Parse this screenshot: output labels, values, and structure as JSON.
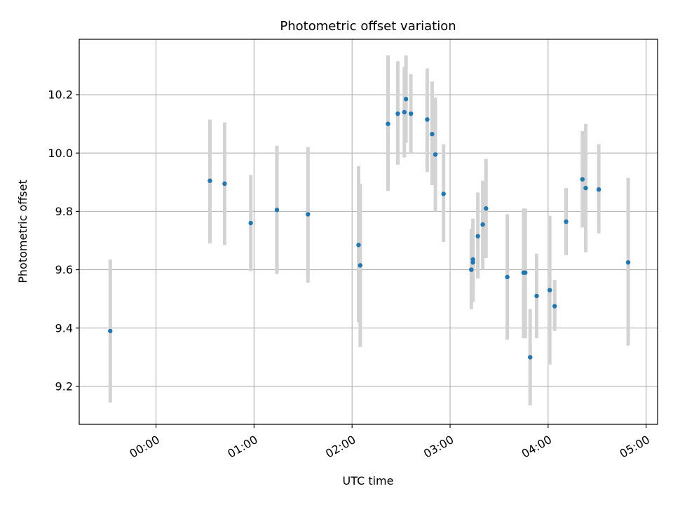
{
  "chart_data": {
    "type": "scatter",
    "title": "Photometric offset variation",
    "xlabel": "UTC time",
    "ylabel": "Photometric offset",
    "xlim": [
      "23:13",
      "05:07"
    ],
    "ylim": [
      9.07,
      10.39
    ],
    "grid": true,
    "x_ticks": [
      "00:00",
      "01:00",
      "02:00",
      "03:00",
      "04:00",
      "05:00"
    ],
    "y_ticks": [
      "9.2",
      "9.4",
      "9.6",
      "9.8",
      "10.0",
      "10.2"
    ],
    "colors": {
      "points": "#1f77b4",
      "errorbars": "#d3d3d3",
      "grid": "#b0b0b0"
    },
    "points": [
      {
        "x": "23:32",
        "y": 9.39,
        "lo": 9.145,
        "hi": 9.635
      },
      {
        "x": "00:33",
        "y": 9.905,
        "lo": 9.69,
        "hi": 10.115
      },
      {
        "x": "00:42",
        "y": 9.895,
        "lo": 9.685,
        "hi": 10.105
      },
      {
        "x": "00:58",
        "y": 9.76,
        "lo": 9.595,
        "hi": 9.925
      },
      {
        "x": "01:14",
        "y": 9.805,
        "lo": 9.585,
        "hi": 10.025
      },
      {
        "x": "01:33",
        "y": 9.79,
        "lo": 9.555,
        "hi": 10.02
      },
      {
        "x": "02:04",
        "y": 9.685,
        "lo": 9.42,
        "hi": 9.955
      },
      {
        "x": "02:05",
        "y": 9.615,
        "lo": 9.335,
        "hi": 9.895
      },
      {
        "x": "02:22",
        "y": 10.1,
        "lo": 9.87,
        "hi": 10.335
      },
      {
        "x": "02:28",
        "y": 10.135,
        "lo": 9.96,
        "hi": 10.315
      },
      {
        "x": "02:32",
        "y": 10.14,
        "lo": 9.985,
        "hi": 10.295
      },
      {
        "x": "02:33",
        "y": 10.185,
        "lo": 10.035,
        "hi": 10.335
      },
      {
        "x": "02:36",
        "y": 10.135,
        "lo": 10.0,
        "hi": 10.27
      },
      {
        "x": "02:46",
        "y": 10.115,
        "lo": 9.935,
        "hi": 10.29
      },
      {
        "x": "02:49",
        "y": 10.065,
        "lo": 9.89,
        "hi": 10.245
      },
      {
        "x": "02:51",
        "y": 9.995,
        "lo": 9.8,
        "hi": 10.19
      },
      {
        "x": "02:56",
        "y": 9.86,
        "lo": 9.695,
        "hi": 10.03
      },
      {
        "x": "03:13",
        "y": 9.6,
        "lo": 9.465,
        "hi": 9.74
      },
      {
        "x": "03:14",
        "y": 9.625,
        "lo": 9.49,
        "hi": 9.755
      },
      {
        "x": "03:14",
        "y": 9.635,
        "lo": 9.5,
        "hi": 9.775
      },
      {
        "x": "03:17",
        "y": 9.715,
        "lo": 9.57,
        "hi": 9.865
      },
      {
        "x": "03:20",
        "y": 9.755,
        "lo": 9.6,
        "hi": 9.905
      },
      {
        "x": "03:22",
        "y": 9.81,
        "lo": 9.64,
        "hi": 9.98
      },
      {
        "x": "03:35",
        "y": 9.575,
        "lo": 9.36,
        "hi": 9.79
      },
      {
        "x": "03:45",
        "y": 9.59,
        "lo": 9.365,
        "hi": 9.81
      },
      {
        "x": "03:46",
        "y": 9.59,
        "lo": 9.365,
        "hi": 9.81
      },
      {
        "x": "03:49",
        "y": 9.3,
        "lo": 9.135,
        "hi": 9.465
      },
      {
        "x": "03:53",
        "y": 9.51,
        "lo": 9.365,
        "hi": 9.655
      },
      {
        "x": "04:01",
        "y": 9.53,
        "lo": 9.275,
        "hi": 9.785
      },
      {
        "x": "04:04",
        "y": 9.475,
        "lo": 9.39,
        "hi": 9.565
      },
      {
        "x": "04:11",
        "y": 9.765,
        "lo": 9.65,
        "hi": 9.88
      },
      {
        "x": "04:21",
        "y": 9.91,
        "lo": 9.745,
        "hi": 10.075
      },
      {
        "x": "04:23",
        "y": 9.88,
        "lo": 9.66,
        "hi": 10.1
      },
      {
        "x": "04:31",
        "y": 9.875,
        "lo": 9.725,
        "hi": 10.03
      },
      {
        "x": "04:49",
        "y": 9.625,
        "lo": 9.34,
        "hi": 9.915
      }
    ]
  }
}
